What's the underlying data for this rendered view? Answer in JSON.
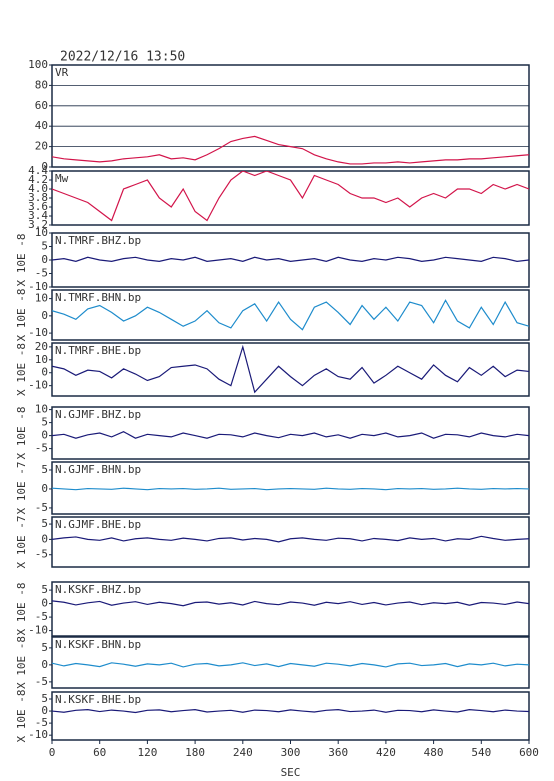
{
  "chart_data": [
    {
      "type": "line",
      "title": "2022/12/16  13:50",
      "label": "VR",
      "color": "#d2144a",
      "grid": true,
      "x": [
        0,
        15,
        30,
        45,
        60,
        75,
        90,
        105,
        120,
        135,
        150,
        165,
        180,
        195,
        210,
        225,
        240,
        255,
        270,
        285,
        300,
        315,
        330,
        345,
        360,
        375,
        390,
        405,
        420,
        435,
        450,
        465,
        480,
        495,
        510,
        525,
        540,
        555,
        570,
        585,
        600
      ],
      "values": [
        10,
        8,
        7,
        6,
        5,
        6,
        8,
        9,
        10,
        12,
        8,
        9,
        7,
        12,
        18,
        25,
        28,
        30,
        26,
        22,
        20,
        18,
        12,
        8,
        5,
        3,
        3,
        4,
        4,
        5,
        4,
        5,
        6,
        7,
        7,
        8,
        8,
        9,
        10,
        11,
        12
      ],
      "ylim": [
        0,
        100
      ],
      "yticks": [
        0,
        20,
        40,
        60,
        80,
        100
      ]
    },
    {
      "type": "line",
      "label": "Mw",
      "color": "#d2144a",
      "x": [
        0,
        15,
        30,
        45,
        60,
        75,
        90,
        105,
        120,
        135,
        150,
        165,
        180,
        195,
        210,
        225,
        240,
        255,
        270,
        285,
        300,
        315,
        330,
        345,
        360,
        375,
        390,
        405,
        420,
        435,
        450,
        465,
        480,
        495,
        510,
        525,
        540,
        555,
        570,
        585,
        600
      ],
      "values": [
        4.0,
        3.9,
        3.8,
        3.7,
        3.5,
        3.3,
        4.0,
        4.1,
        4.2,
        3.8,
        3.6,
        4.0,
        3.5,
        3.3,
        3.8,
        4.2,
        4.4,
        4.3,
        4.4,
        4.3,
        4.2,
        3.8,
        4.3,
        4.2,
        4.1,
        3.9,
        3.8,
        3.8,
        3.7,
        3.8,
        3.6,
        3.8,
        3.9,
        3.8,
        4.0,
        4.0,
        3.9,
        4.1,
        4.0,
        4.1,
        4.0
      ],
      "ylim": [
        3.2,
        4.4
      ],
      "yticks": [
        3.2,
        3.4,
        3.6,
        3.8,
        {
          "value": 4,
          "label": "4.0"
        },
        4.2,
        4.4
      ]
    },
    {
      "type": "line",
      "label": "N.TMRF.BHZ.bp",
      "ylabel": "X 10E -8",
      "color": "#1a1a78",
      "x": [
        0,
        15,
        30,
        45,
        60,
        75,
        90,
        105,
        120,
        135,
        150,
        165,
        180,
        195,
        210,
        225,
        240,
        255,
        270,
        285,
        300,
        315,
        330,
        345,
        360,
        375,
        390,
        405,
        420,
        435,
        450,
        465,
        480,
        495,
        510,
        525,
        540,
        555,
        570,
        585,
        600
      ],
      "values": [
        0,
        0.5,
        -0.5,
        1,
        0,
        -0.5,
        0.5,
        1,
        0,
        -0.5,
        0.5,
        0,
        1,
        -0.5,
        0,
        0.5,
        -0.5,
        1,
        0,
        0.5,
        -0.5,
        0,
        0.5,
        -0.5,
        1,
        0,
        -0.5,
        0.5,
        0,
        1,
        0.5,
        -0.5,
        0,
        1,
        0.5,
        0,
        -0.5,
        1,
        0.5,
        -0.5,
        0
      ],
      "ylim": [
        -10,
        10
      ],
      "yticks": [
        -10,
        -5,
        0,
        5,
        10
      ]
    },
    {
      "type": "line",
      "label": "N.TMRF.BHN.bp",
      "ylabel": "X 10E -8",
      "color": "#1e8ccc",
      "x": [
        0,
        15,
        30,
        45,
        60,
        75,
        90,
        105,
        120,
        135,
        150,
        165,
        180,
        195,
        210,
        225,
        240,
        255,
        270,
        285,
        300,
        315,
        330,
        345,
        360,
        375,
        390,
        405,
        420,
        435,
        450,
        465,
        480,
        495,
        510,
        525,
        540,
        555,
        570,
        585,
        600
      ],
      "values": [
        3,
        1,
        -2,
        4,
        6,
        2,
        -3,
        0,
        5,
        2,
        -2,
        -6,
        -3,
        3,
        -4,
        -7,
        3,
        7,
        -3,
        8,
        -2,
        -8,
        5,
        8,
        2,
        -5,
        6,
        -2,
        5,
        -3,
        8,
        6,
        -4,
        9,
        -3,
        -7,
        5,
        -5,
        8,
        -4,
        -6
      ],
      "ylim": [
        -14,
        15
      ],
      "yticks": [
        -10,
        0,
        10
      ]
    },
    {
      "type": "line",
      "label": "N.TMRF.BHE.bp",
      "ylabel": "X 10E -8",
      "color": "#1a1a78",
      "x": [
        0,
        15,
        30,
        45,
        60,
        75,
        90,
        105,
        120,
        135,
        150,
        165,
        180,
        195,
        210,
        225,
        240,
        255,
        270,
        285,
        300,
        315,
        330,
        345,
        360,
        375,
        390,
        405,
        420,
        435,
        450,
        465,
        480,
        495,
        510,
        525,
        540,
        555,
        570,
        585,
        600
      ],
      "values": [
        5,
        3,
        -2,
        2,
        1,
        -4,
        3,
        -1,
        -6,
        -3,
        4,
        5,
        6,
        3,
        -5,
        -10,
        20,
        -15,
        -5,
        5,
        -3,
        -10,
        -2,
        3,
        -3,
        -5,
        4,
        -8,
        -2,
        5,
        0,
        -5,
        6,
        -2,
        -7,
        4,
        -2,
        5,
        -3,
        2,
        1
      ],
      "ylim": [
        -18,
        23
      ],
      "yticks": [
        -10,
        0,
        10,
        20
      ]
    },
    {
      "type": "line",
      "label": "N.GJMF.BHZ.bp",
      "ylabel": "X 10E -8",
      "color": "#1a1a78",
      "x": [
        0,
        15,
        30,
        45,
        60,
        75,
        90,
        105,
        120,
        135,
        150,
        165,
        180,
        195,
        210,
        225,
        240,
        255,
        270,
        285,
        300,
        315,
        330,
        345,
        360,
        375,
        390,
        405,
        420,
        435,
        450,
        465,
        480,
        495,
        510,
        525,
        540,
        555,
        570,
        585,
        600
      ],
      "values": [
        0,
        0.5,
        -1,
        0.3,
        1,
        -0.5,
        1.5,
        -1,
        0.5,
        0,
        -0.5,
        1,
        0,
        -1,
        0.5,
        0.3,
        -0.5,
        1,
        0,
        -0.8,
        0.5,
        0,
        1,
        -0.5,
        0.3,
        -1,
        0.5,
        0,
        1,
        -0.5,
        0,
        1,
        -1,
        0.5,
        0.3,
        -0.5,
        1,
        0,
        -0.5,
        0.5,
        0
      ],
      "ylim": [
        -9,
        11
      ],
      "yticks": [
        -5,
        0,
        5,
        10
      ]
    },
    {
      "type": "line",
      "label": "N.GJMF.BHN.bp",
      "ylabel": "X 10E -7",
      "color": "#1e8ccc",
      "x": [
        0,
        15,
        30,
        45,
        60,
        75,
        90,
        105,
        120,
        135,
        150,
        165,
        180,
        195,
        210,
        225,
        240,
        255,
        270,
        285,
        300,
        315,
        330,
        345,
        360,
        375,
        390,
        405,
        420,
        435,
        450,
        465,
        480,
        495,
        510,
        525,
        540,
        555,
        570,
        585,
        600
      ],
      "values": [
        0.2,
        0,
        -0.2,
        0.1,
        0,
        -0.1,
        0.2,
        0,
        -0.2,
        0.1,
        0,
        0.1,
        -0.1,
        0,
        0.2,
        -0.1,
        0,
        0.1,
        -0.2,
        0,
        0.1,
        0,
        -0.1,
        0.2,
        0,
        -0.1,
        0.1,
        0,
        -0.2,
        0.1,
        0,
        0.1,
        -0.1,
        0,
        0.2,
        0,
        -0.1,
        0.1,
        0,
        0.1,
        0
      ],
      "ylim": [
        -6.6,
        7.1
      ],
      "yticks": [
        -5,
        0,
        5
      ]
    },
    {
      "type": "line",
      "label": "N.GJMF.BHE.bp",
      "ylabel": "X 10E -7",
      "color": "#1a1a78",
      "x": [
        0,
        15,
        30,
        45,
        60,
        75,
        90,
        105,
        120,
        135,
        150,
        165,
        180,
        195,
        210,
        225,
        240,
        255,
        270,
        285,
        300,
        315,
        330,
        345,
        360,
        375,
        390,
        405,
        420,
        435,
        450,
        465,
        480,
        495,
        510,
        525,
        540,
        555,
        570,
        585,
        600
      ],
      "values": [
        0,
        0.5,
        0.8,
        0,
        -0.3,
        0.5,
        -0.5,
        0.2,
        0.5,
        0,
        -0.3,
        0.4,
        0,
        -0.5,
        0.3,
        0.5,
        -0.2,
        0.3,
        0,
        -0.8,
        0.2,
        0.5,
        0,
        -0.3,
        0.4,
        0.2,
        -0.5,
        0.3,
        0,
        -0.4,
        0.5,
        0,
        0.3,
        -0.5,
        0.2,
        0,
        1,
        0.3,
        -0.3,
        0,
        0.2
      ],
      "ylim": [
        -9,
        7.3
      ],
      "yticks": [
        -5,
        0,
        5
      ]
    },
    {
      "type": "line",
      "label": "N.KSKF.BHZ.bp",
      "ylabel": "X 10E -8",
      "color": "#1a1a78",
      "x": [
        0,
        15,
        30,
        45,
        60,
        75,
        90,
        105,
        120,
        135,
        150,
        165,
        180,
        195,
        210,
        225,
        240,
        255,
        270,
        285,
        300,
        315,
        330,
        345,
        360,
        375,
        390,
        405,
        420,
        435,
        450,
        465,
        480,
        495,
        510,
        525,
        540,
        555,
        570,
        585,
        600
      ],
      "values": [
        1,
        0.5,
        -0.5,
        0.3,
        0.8,
        -0.6,
        0.2,
        0.7,
        -0.3,
        0.5,
        0,
        -0.8,
        0.4,
        0.6,
        -0.2,
        0.3,
        -0.5,
        0.8,
        0,
        -0.4,
        0.6,
        0.2,
        -0.6,
        0.5,
        0,
        0.7,
        -0.3,
        0.4,
        -0.5,
        0.2,
        0.6,
        -0.4,
        0.3,
        0,
        0.5,
        -0.6,
        0.4,
        0.2,
        -0.3,
        0.6,
        0
      ],
      "ylim": [
        -12,
        8
      ],
      "yticks": [
        -10,
        -5,
        0,
        5
      ]
    },
    {
      "type": "line",
      "label": "N.KSKF.BHN.bp",
      "ylabel": "X 10E -8",
      "color": "#1e8ccc",
      "x": [
        0,
        15,
        30,
        45,
        60,
        75,
        90,
        105,
        120,
        135,
        150,
        165,
        180,
        195,
        210,
        225,
        240,
        255,
        270,
        285,
        300,
        315,
        330,
        345,
        360,
        375,
        390,
        405,
        420,
        435,
        450,
        465,
        480,
        495,
        510,
        525,
        540,
        555,
        570,
        585,
        600
      ],
      "values": [
        0.5,
        -0.3,
        0.4,
        0,
        -0.5,
        0.6,
        0.2,
        -0.4,
        0.3,
        0,
        0.5,
        -0.6,
        0.2,
        0.4,
        -0.3,
        0,
        0.6,
        -0.2,
        0.3,
        -0.5,
        0.4,
        0,
        -0.4,
        0.5,
        0.2,
        -0.3,
        0.4,
        0,
        -0.6,
        0.3,
        0.5,
        -0.2,
        0,
        0.4,
        -0.5,
        0.3,
        0,
        0.5,
        -0.3,
        0.2,
        0
      ],
      "ylim": [
        -6.8,
        8.2
      ],
      "yticks": [
        -5,
        0,
        5
      ]
    },
    {
      "type": "line",
      "label": "N.KSKF.BHE.bp",
      "ylabel": "X 10E -8",
      "color": "#1a1a78",
      "x": [
        0,
        15,
        30,
        45,
        60,
        75,
        90,
        105,
        120,
        135,
        150,
        165,
        180,
        195,
        210,
        225,
        240,
        255,
        270,
        285,
        300,
        315,
        330,
        345,
        360,
        375,
        390,
        405,
        420,
        435,
        450,
        465,
        480,
        495,
        510,
        525,
        540,
        555,
        570,
        585,
        600
      ],
      "values": [
        0,
        -0.5,
        0.3,
        0.6,
        -0.2,
        0.4,
        0,
        -0.6,
        0.3,
        0.5,
        -0.3,
        0.2,
        0.6,
        -0.4,
        0,
        0.3,
        -0.5,
        0.4,
        0.2,
        -0.3,
        0.5,
        0,
        -0.4,
        0.3,
        0.6,
        -0.2,
        0,
        0.4,
        -0.5,
        0.3,
        0.2,
        -0.3,
        0.5,
        0,
        -0.4,
        0.6,
        0.2,
        -0.3,
        0.4,
        0,
        -0.2
      ],
      "ylim": [
        -12,
        7.9
      ],
      "yticks": [
        -10,
        -5,
        0,
        5
      ],
      "xlim": [
        0,
        600
      ],
      "xticks": [
        0,
        60,
        120,
        180,
        240,
        300,
        360,
        420,
        480,
        540,
        600
      ],
      "xlabel": "SEC"
    }
  ]
}
